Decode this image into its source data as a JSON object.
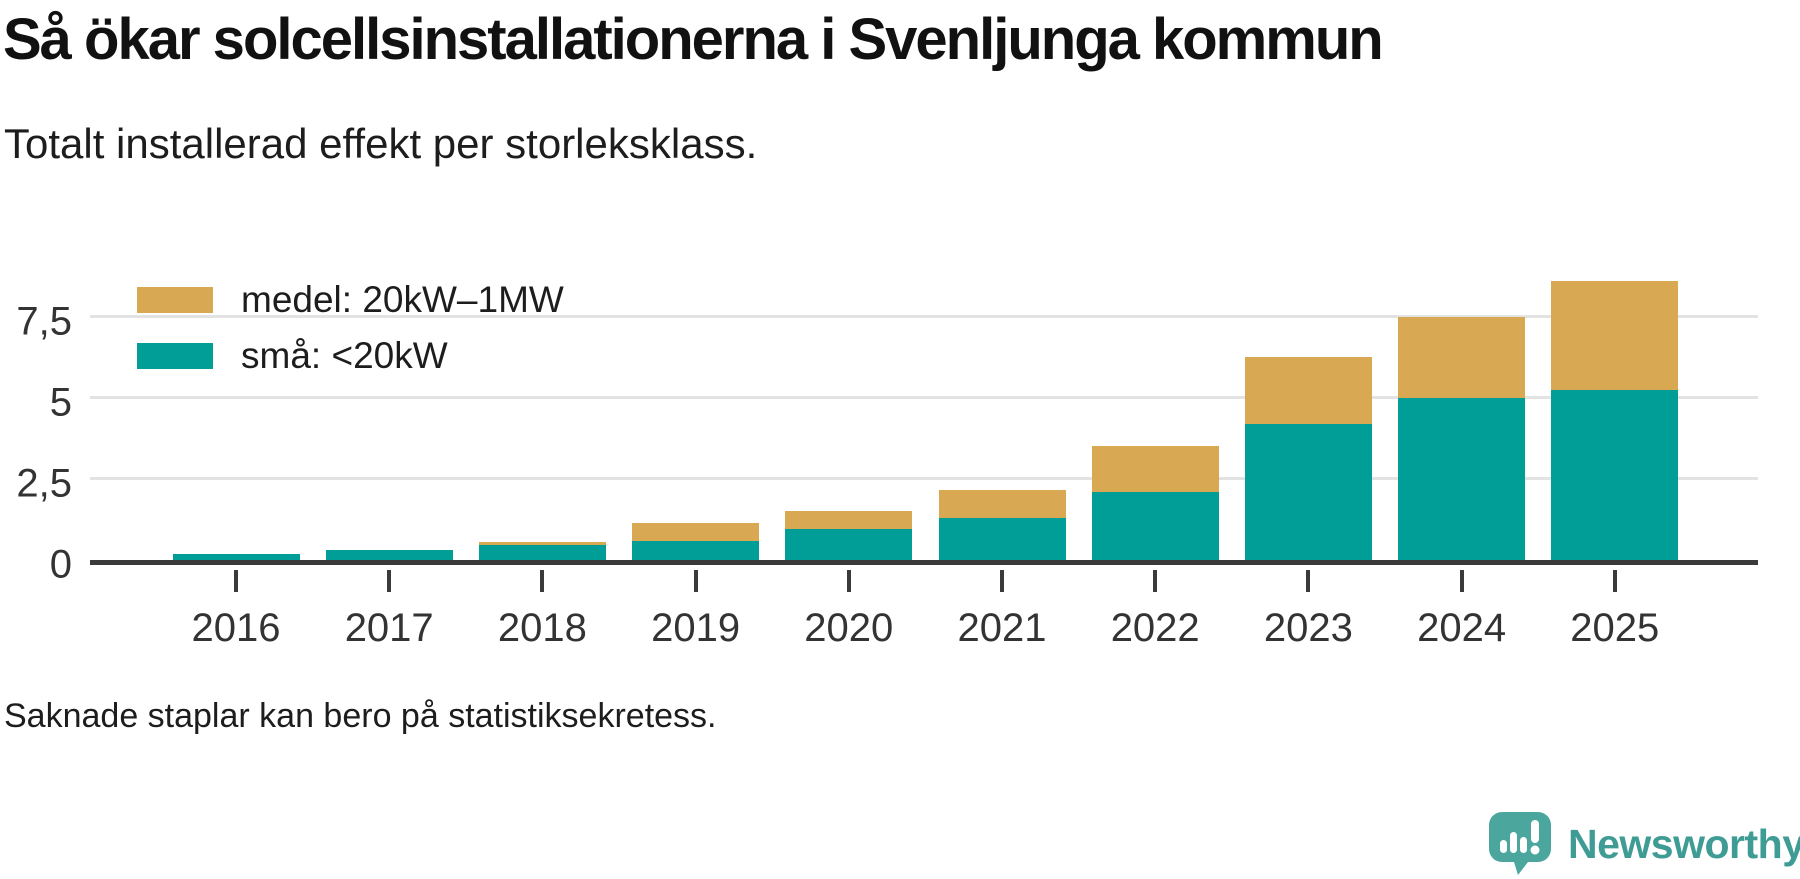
{
  "header": {
    "title": "Så ökar solcellsinstallationerna i Svenljunga kommun",
    "subtitle": "Totalt installerad effekt per storleksklass."
  },
  "legend": [
    {
      "label": "medel: 20kW–1MW",
      "color": "#d8a853"
    },
    {
      "label": "små: <20kW",
      "color": "#009e97"
    }
  ],
  "chart_data": {
    "type": "bar",
    "stacked": true,
    "title": "Så ökar solcellsinstallationerna i Svenljunga kommun",
    "subtitle": "Totalt installerad effekt per storleksklass.",
    "xlabel": "",
    "ylabel": "",
    "categories": [
      "2016",
      "2017",
      "2018",
      "2019",
      "2020",
      "2021",
      "2022",
      "2023",
      "2024",
      "2025"
    ],
    "series": [
      {
        "name": "små: <20kW",
        "color": "#009e97",
        "values": [
          0.2,
          0.3,
          0.45,
          0.6,
          0.95,
          1.3,
          2.1,
          4.2,
          5.0,
          5.25
        ]
      },
      {
        "name": "medel: 20kW–1MW",
        "color": "#d8a853",
        "values": [
          0,
          0,
          0.1,
          0.55,
          0.55,
          0.85,
          1.4,
          2.05,
          2.5,
          3.35
        ]
      }
    ],
    "ylim": [
      0,
      8.75
    ],
    "yticks": [
      {
        "value": 0,
        "label": "0"
      },
      {
        "value": 2.5,
        "label": "2,5"
      },
      {
        "value": 5,
        "label": "5"
      },
      {
        "value": 7.5,
        "label": "7,5"
      }
    ],
    "grid": "horizontal",
    "legend_position": "top-left"
  },
  "footer": {
    "note": "Saknade staplar kan bero på statistiksekretess."
  },
  "branding": {
    "name": "Newsworthy",
    "icon": "newsworthy-bubble-chart-icon",
    "text_color": "#3f9c94",
    "icon_color": "#4ba79d",
    "axis_color": "#3a3a3a",
    "gridline_color": "#e3e3e3"
  }
}
